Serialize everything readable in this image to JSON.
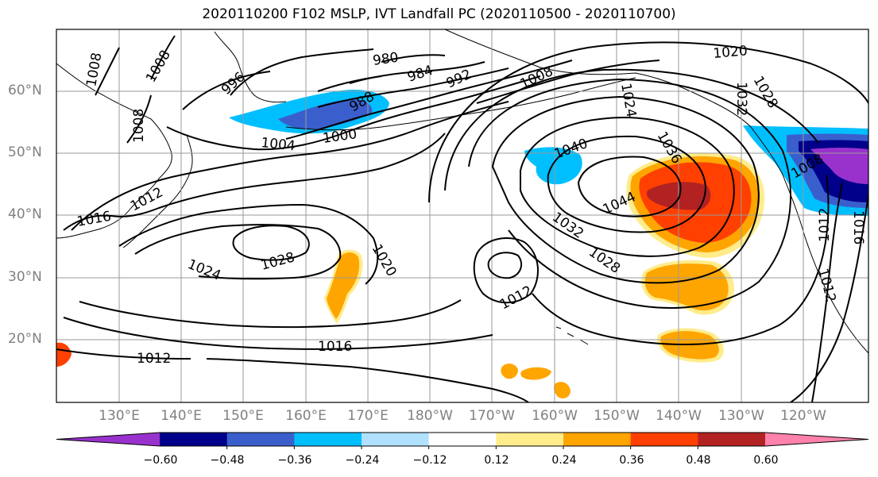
{
  "title": "2020110200 F102 MSLP, IVT Landfall PC (2020110500 - 2020110700)",
  "lat_labels": [
    "60°N",
    "50°N",
    "40°N",
    "30°N",
    "20°N"
  ],
  "lon_labels": [
    "130°E",
    "140°E",
    "150°E",
    "160°E",
    "170°E",
    "180°W",
    "170°W",
    "160°W",
    "150°W",
    "140°W",
    "130°W",
    "120°W"
  ],
  "contour_labels": {
    "c980": "980",
    "c984": "984",
    "c988": "988",
    "c992": "992",
    "c996": "996",
    "c1000": "1000",
    "c1004": "1004",
    "c1008": "1008",
    "c1012": "1012",
    "c1016": "1016",
    "c1020": "1020",
    "c1024": "1024",
    "c1028": "1028",
    "c1032": "1032",
    "c1036": "1036",
    "c1040": "1040",
    "c1044": "1044"
  },
  "colorbar": {
    "colors": [
      "#9932CC",
      "#00008B",
      "#3A5FCD",
      "#00BFFF",
      "#B0E2FF",
      "#FFFFFF",
      "#FFEC8B",
      "#FFA500",
      "#FF4000",
      "#B22222",
      "#FF82AB"
    ],
    "tick_labels": [
      "−0.60",
      "−0.48",
      "−0.36",
      "−0.24",
      "−0.12",
      "0.12",
      "0.24",
      "0.36",
      "0.48",
      "0.60"
    ]
  }
}
